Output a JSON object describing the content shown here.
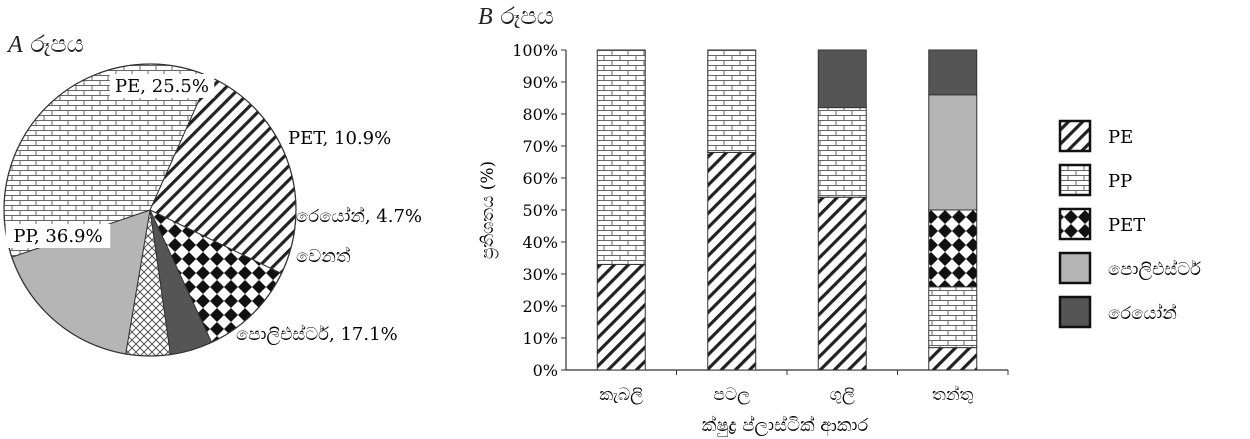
{
  "chart_data": [
    {
      "type": "pie",
      "title_letter": "A",
      "title": "රූපය",
      "slices": [
        {
          "label": "PE",
          "value_label": "25.5%",
          "value": 25.5,
          "pattern": "diag"
        },
        {
          "label": "PET",
          "value_label": "10.9%",
          "value": 10.9,
          "pattern": "diamond"
        },
        {
          "label": "රෙයෝන්",
          "value_label": "4.7%",
          "value": 4.7,
          "pattern": "dark"
        },
        {
          "label": "වෙනත්",
          "value_label": "",
          "value": 4.9,
          "pattern": "crosshatch"
        },
        {
          "label": "පොලිඑස්ටර්",
          "value_label": "17.1%",
          "value": 17.1,
          "pattern": "gray"
        },
        {
          "label": "PP",
          "value_label": "36.9%",
          "value": 36.9,
          "pattern": "brick"
        }
      ]
    },
    {
      "type": "bar",
      "stacked": true,
      "title_letter": "B",
      "title": "රූපය",
      "xlabel": "ක්ෂුද්‍ර ප්ලාස්ටික් ආකාර",
      "ylabel": "ප්‍රතිශතය (%)",
      "ylim": [
        0,
        100
      ],
      "yticks": [
        "0%",
        "10%",
        "20%",
        "30%",
        "40%",
        "50%",
        "60%",
        "70%",
        "80%",
        "90%",
        "100%"
      ],
      "categories": [
        "කැබලි",
        "පටල",
        "ගුලි",
        "තන්තු"
      ],
      "series": [
        {
          "name": "PE",
          "pattern": "diag",
          "values": [
            33,
            68,
            54,
            7
          ]
        },
        {
          "name": "PP",
          "pattern": "brick",
          "values": [
            67,
            32,
            28,
            19
          ]
        },
        {
          "name": "PET",
          "pattern": "diamond",
          "values": [
            0,
            0,
            0,
            24
          ]
        },
        {
          "name": "පොලිඑස්ටර්",
          "pattern": "gray",
          "values": [
            0,
            0,
            0,
            36
          ]
        },
        {
          "name": "රෙයෝන්",
          "pattern": "dark",
          "values": [
            0,
            0,
            18,
            14
          ]
        }
      ],
      "legend_position": "right"
    }
  ],
  "colors": {
    "dark": "#555555",
    "gray": "#b5b5b5",
    "line": "#333333",
    "background": "#ffffff"
  }
}
